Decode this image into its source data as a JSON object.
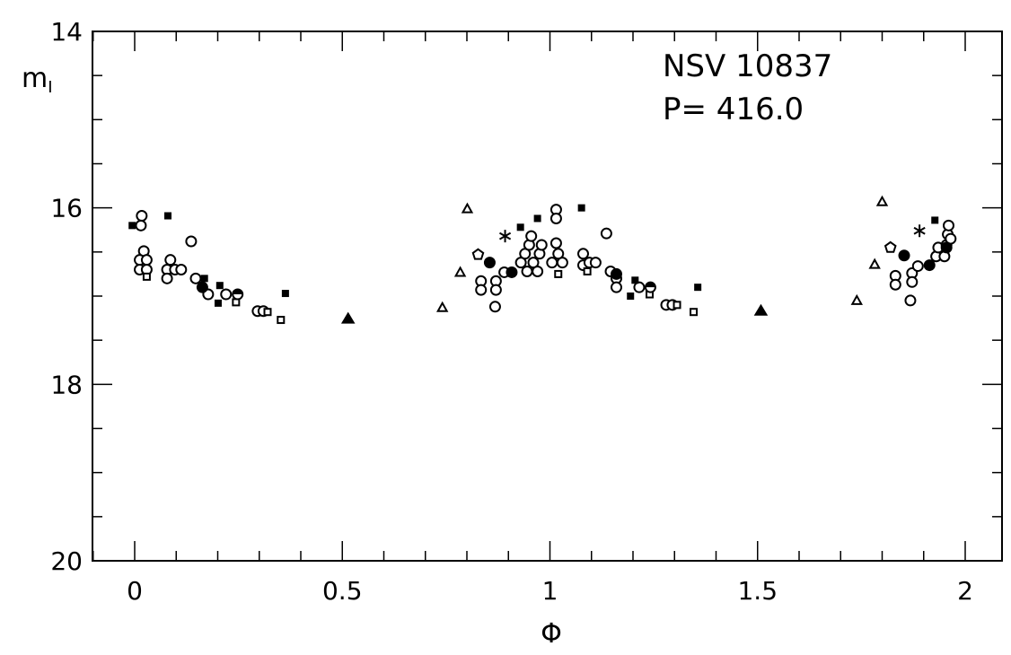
{
  "chart_data": {
    "type": "scatter",
    "title": "",
    "annotations": [
      "NSV 10837",
      "P= 416.0"
    ],
    "xlabel": "Φ",
    "ylabel_main": "m",
    "ylabel_sub": "I",
    "xlim": [
      -0.1,
      2.09
    ],
    "ylim": [
      20,
      14
    ],
    "y_inverted": true,
    "xticks": [
      0,
      0.5,
      1,
      1.5,
      2
    ],
    "xtick_labels": [
      "0",
      "0.5",
      "1",
      "1.5",
      "2"
    ],
    "yticks": [
      14,
      16,
      18,
      20
    ],
    "ytick_labels": [
      "14",
      "16",
      "18",
      "20"
    ],
    "grid": false,
    "color": "#000000",
    "series": [
      {
        "marker": "open-circle",
        "points": [
          [
            0.017,
            16.09
          ],
          [
            0.015,
            16.2
          ],
          [
            0.022,
            16.49
          ],
          [
            0.012,
            16.59
          ],
          [
            0.029,
            16.59
          ],
          [
            0.012,
            16.7
          ],
          [
            0.029,
            16.7
          ],
          [
            0.078,
            16.7
          ],
          [
            0.078,
            16.8
          ],
          [
            0.086,
            16.59
          ],
          [
            0.097,
            16.7
          ],
          [
            0.112,
            16.7
          ],
          [
            0.136,
            16.38
          ],
          [
            0.147,
            16.8
          ],
          [
            0.177,
            16.98
          ],
          [
            0.22,
            16.98
          ],
          [
            0.296,
            17.17
          ],
          [
            0.31,
            17.17
          ],
          [
            0.834,
            16.83
          ],
          [
            0.834,
            16.93
          ],
          [
            0.868,
            17.12
          ],
          [
            0.87,
            16.83
          ],
          [
            0.87,
            16.93
          ],
          [
            0.89,
            16.73
          ],
          [
            0.94,
            16.52
          ],
          [
            0.95,
            16.42
          ],
          [
            0.955,
            16.32
          ],
          [
            0.96,
            16.62
          ],
          [
            0.97,
            16.72
          ],
          [
            0.975,
            16.52
          ],
          [
            0.98,
            16.42
          ],
          [
            0.93,
            16.62
          ],
          [
            0.945,
            16.72
          ],
          [
            1.015,
            16.02
          ],
          [
            1.015,
            16.12
          ],
          [
            1.015,
            16.4
          ],
          [
            1.02,
            16.52
          ],
          [
            1.005,
            16.62
          ],
          [
            1.03,
            16.62
          ],
          [
            1.08,
            16.52
          ],
          [
            1.08,
            16.65
          ],
          [
            1.095,
            16.62
          ],
          [
            1.11,
            16.62
          ],
          [
            1.136,
            16.29
          ],
          [
            1.146,
            16.72
          ],
          [
            1.16,
            16.8
          ],
          [
            1.16,
            16.9
          ],
          [
            1.215,
            16.9
          ],
          [
            1.28,
            17.1
          ],
          [
            1.295,
            17.1
          ],
          [
            1.832,
            16.77
          ],
          [
            1.832,
            16.87
          ],
          [
            1.868,
            17.05
          ],
          [
            1.872,
            16.74
          ],
          [
            1.872,
            16.84
          ],
          [
            1.886,
            16.66
          ],
          [
            1.93,
            16.55
          ],
          [
            1.935,
            16.45
          ],
          [
            1.95,
            16.55
          ],
          [
            1.955,
            16.42
          ],
          [
            1.958,
            16.3
          ],
          [
            1.96,
            16.2
          ],
          [
            1.965,
            16.35
          ]
        ]
      },
      {
        "marker": "filled-square",
        "points": [
          [
            -0.006,
            16.2
          ],
          [
            0.08,
            16.09
          ],
          [
            0.168,
            16.8
          ],
          [
            0.201,
            17.08
          ],
          [
            0.205,
            16.88
          ],
          [
            0.363,
            16.97
          ],
          [
            0.929,
            16.22
          ],
          [
            0.97,
            16.12
          ],
          [
            1.076,
            16.0
          ],
          [
            1.205,
            16.82
          ],
          [
            1.194,
            17.0
          ],
          [
            1.356,
            16.9
          ],
          [
            1.927,
            16.14
          ]
        ]
      },
      {
        "marker": "filled-circle",
        "points": [
          [
            0.163,
            16.9
          ],
          [
            0.855,
            16.62
          ],
          [
            0.908,
            16.73
          ],
          [
            1.16,
            16.75
          ],
          [
            1.853,
            16.54
          ],
          [
            1.914,
            16.65
          ],
          [
            1.955,
            16.45
          ]
        ]
      },
      {
        "marker": "open-square",
        "points": [
          [
            0.029,
            16.78
          ],
          [
            0.244,
            17.07
          ],
          [
            0.32,
            17.18
          ],
          [
            0.352,
            17.27
          ],
          [
            1.02,
            16.75
          ],
          [
            1.09,
            16.72
          ],
          [
            1.24,
            16.98
          ],
          [
            1.306,
            17.1
          ],
          [
            1.346,
            17.18
          ]
        ]
      },
      {
        "marker": "half-filled-circle",
        "points": [
          [
            0.248,
            16.98
          ],
          [
            1.242,
            16.9
          ]
        ]
      },
      {
        "marker": "open-triangle",
        "points": [
          [
            0.741,
            17.13
          ],
          [
            0.784,
            16.73
          ],
          [
            0.801,
            16.01
          ],
          [
            1.739,
            17.05
          ],
          [
            1.782,
            16.64
          ],
          [
            1.8,
            15.93
          ]
        ]
      },
      {
        "marker": "filled-triangle",
        "points": [
          [
            0.514,
            17.26
          ],
          [
            1.508,
            17.17
          ]
        ]
      },
      {
        "marker": "open-pentagon",
        "points": [
          [
            0.827,
            16.53
          ],
          [
            1.82,
            16.45
          ]
        ]
      },
      {
        "marker": "asterisk",
        "points": [
          [
            0.892,
            16.32
          ],
          [
            1.89,
            16.26
          ]
        ]
      }
    ]
  }
}
